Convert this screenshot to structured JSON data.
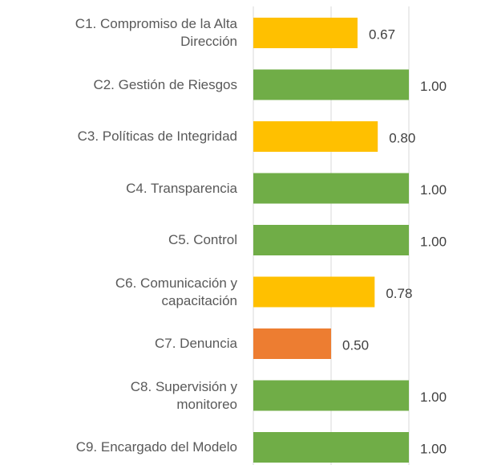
{
  "chart_data": {
    "type": "barh",
    "categories": [
      "C1. Compromiso de la Alta\nDirección",
      "C2. Gestión de Riesgos",
      "C3. Políticas de Integridad",
      "C4. Transparencia",
      "C5. Control",
      "C6. Comunicación y\ncapacitación",
      "C7. Denuncia",
      "C8. Supervisión y\nmonitoreo",
      "C9. Encargado del Modelo"
    ],
    "values": [
      0.67,
      1,
      0.8,
      1,
      1,
      0.78,
      0.5,
      1,
      1
    ],
    "value_labels": [
      "0.67",
      "1.00",
      "0.80",
      "1.00",
      "1.00",
      "0.78",
      "0.50",
      "1.00",
      "1.00"
    ],
    "colors": [
      "#FFC000",
      "#70AD47",
      "#FFC000",
      "#70AD47",
      "#70AD47",
      "#FFC000",
      "#ED7D31",
      "#70AD47",
      "#70AD47"
    ],
    "xlim": [
      0,
      1
    ],
    "xticks": [
      0,
      0.5,
      1
    ],
    "grid": true
  }
}
